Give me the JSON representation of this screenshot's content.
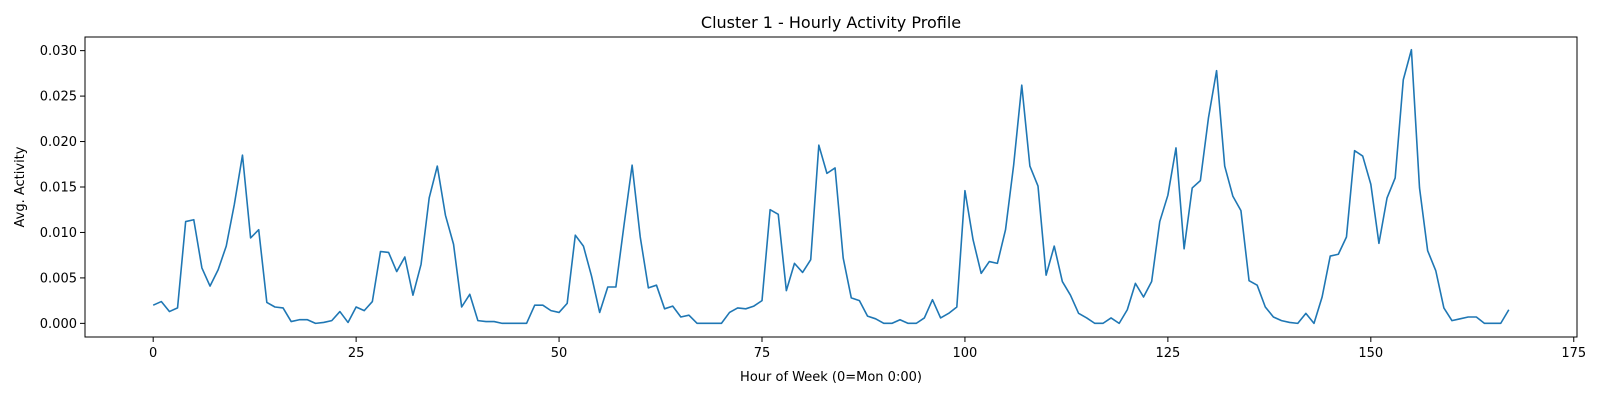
{
  "chart_data": {
    "type": "line",
    "title": "Cluster 1 - Hourly Activity Profile",
    "xlabel": "Hour of Week (0=Mon 0:00)",
    "ylabel": "Avg. Activity",
    "xlim": [
      -8.4,
      175.4
    ],
    "ylim": [
      -0.0015,
      0.0315
    ],
    "xticks": [
      0,
      25,
      50,
      75,
      100,
      125,
      150,
      175
    ],
    "xtick_labels": [
      "0",
      "25",
      "50",
      "75",
      "100",
      "125",
      "150",
      "175"
    ],
    "yticks": [
      0.0,
      0.005,
      0.01,
      0.015,
      0.02,
      0.025,
      0.03
    ],
    "ytick_labels": [
      "0.000",
      "0.005",
      "0.010",
      "0.015",
      "0.020",
      "0.025",
      "0.030"
    ],
    "grid": false,
    "series": [
      {
        "color": "#1f77b4",
        "values": [
          0.002,
          0.0024,
          0.0013,
          0.0017,
          0.0112,
          0.0114,
          0.0061,
          0.0041,
          0.0059,
          0.0085,
          0.0131,
          0.0185,
          0.0094,
          0.0103,
          0.0023,
          0.0018,
          0.0017,
          0.0002,
          0.0004,
          0.0004,
          0.0,
          0.0001,
          0.0003,
          0.0013,
          0.0001,
          0.0018,
          0.0014,
          0.0024,
          0.0079,
          0.0078,
          0.0057,
          0.0073,
          0.0031,
          0.0065,
          0.0138,
          0.0173,
          0.0119,
          0.0087,
          0.0018,
          0.0032,
          0.0003,
          0.0002,
          0.0002,
          0.0,
          0.0,
          0.0,
          0.0,
          0.002,
          0.002,
          0.0014,
          0.0012,
          0.0022,
          0.0097,
          0.0085,
          0.0052,
          0.0012,
          0.004,
          0.004,
          0.0108,
          0.0174,
          0.0095,
          0.0039,
          0.0042,
          0.0016,
          0.0019,
          0.0007,
          0.0009,
          0.0,
          0.0,
          0.0,
          0.0,
          0.0012,
          0.0017,
          0.0016,
          0.0019,
          0.0025,
          0.0125,
          0.012,
          0.0036,
          0.0066,
          0.0056,
          0.007,
          0.0196,
          0.0165,
          0.0171,
          0.0072,
          0.0028,
          0.0025,
          0.0008,
          0.0005,
          0.0,
          0.0,
          0.0004,
          0.0,
          0.0,
          0.0006,
          0.0026,
          0.0006,
          0.0011,
          0.0018,
          0.0146,
          0.0092,
          0.0055,
          0.0068,
          0.0066,
          0.0103,
          0.0174,
          0.0262,
          0.0173,
          0.0151,
          0.0053,
          0.0085,
          0.0046,
          0.0031,
          0.0011,
          0.0006,
          0.0,
          0.0,
          0.0006,
          0.0,
          0.0015,
          0.0044,
          0.0029,
          0.0046,
          0.0112,
          0.0141,
          0.0193,
          0.0082,
          0.0149,
          0.0157,
          0.0226,
          0.0278,
          0.0173,
          0.014,
          0.0124,
          0.0047,
          0.0042,
          0.0018,
          0.0007,
          0.0003,
          0.0001,
          0.0,
          0.0011,
          0.0,
          0.0029,
          0.0074,
          0.0076,
          0.0095,
          0.019,
          0.0184,
          0.0153,
          0.0088,
          0.0138,
          0.016,
          0.0268,
          0.0301,
          0.0149,
          0.008,
          0.0058,
          0.0017,
          0.0003,
          0.0005,
          0.0007,
          0.0007,
          0.0,
          0.0,
          0.0,
          0.0015
        ]
      }
    ]
  }
}
